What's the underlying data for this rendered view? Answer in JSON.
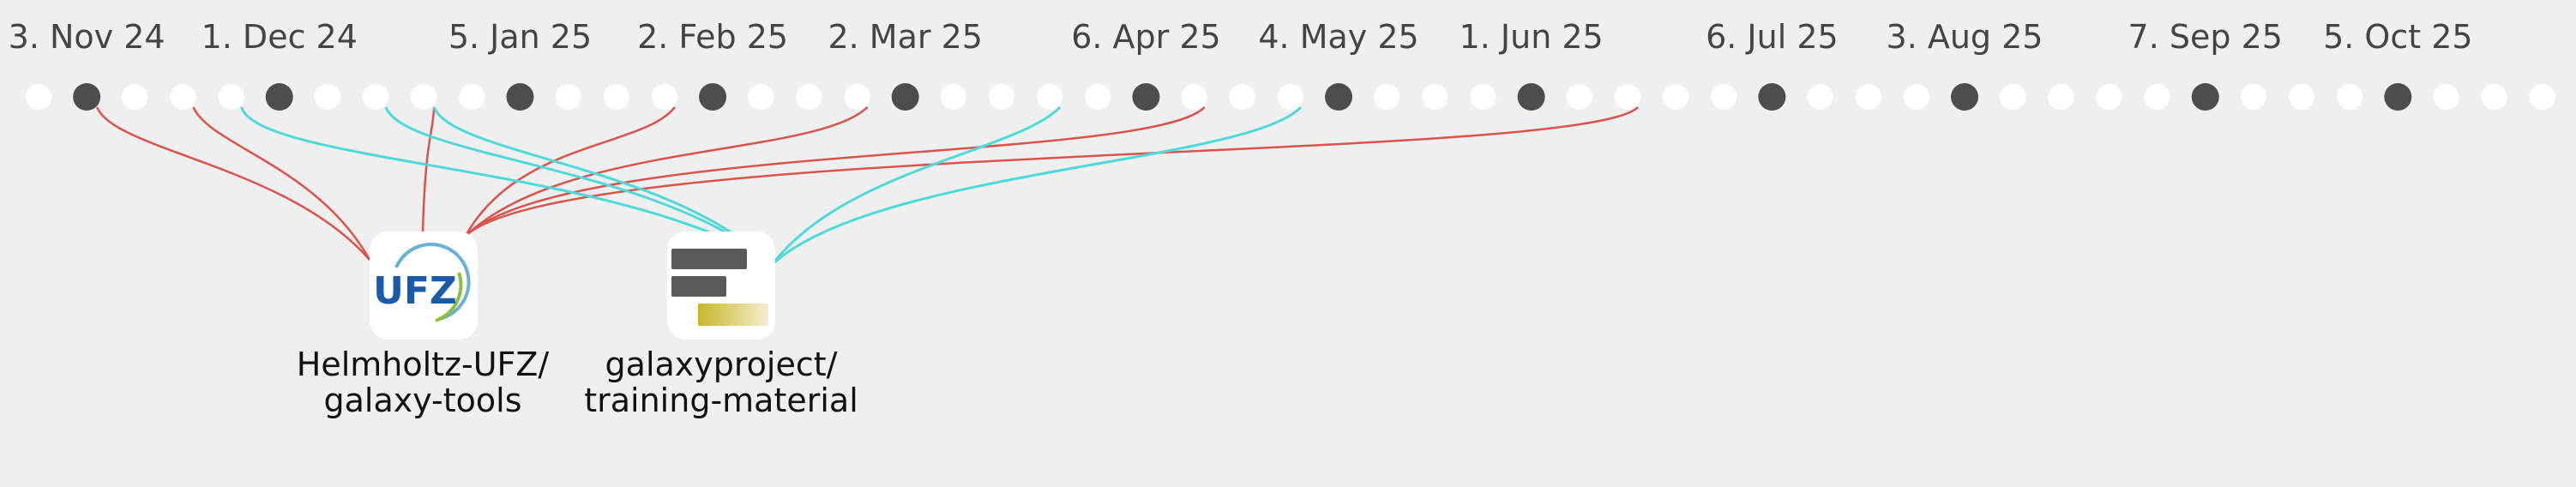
{
  "timeline": {
    "dates": [
      "3. Nov 24",
      "1. Dec 24",
      "5. Jan 25",
      "2. Feb 25",
      "2. Mar 25",
      "6. Apr 25",
      "4. May 25",
      "1. Jun 25",
      "6. Jul 25",
      "3. Aug 25",
      "7. Sep 25",
      "5. Oct 25"
    ],
    "date_week_index": [
      1,
      5,
      10,
      14,
      18,
      23,
      27,
      31,
      36,
      40,
      45,
      49
    ],
    "week_count": 53,
    "dot_fill": "#ffffff",
    "marker_fill": "#4d4d4d"
  },
  "repos": [
    {
      "name_line1": "Helmholtz-UFZ/",
      "name_line2": "galaxy-tools",
      "icon": "ufz-logo-icon",
      "logo_text": "UFZ",
      "link_color": "#d9534f",
      "linked_weeks": [
        1,
        3,
        8,
        13,
        17,
        24,
        33
      ]
    },
    {
      "name_line1": "galaxyproject/",
      "name_line2": "training-material",
      "icon": "training-material-logo-icon",
      "link_color": "#4fd9d9",
      "linked_weeks": [
        4,
        7,
        8,
        21,
        26
      ]
    }
  ],
  "colors": {
    "background": "#efefef",
    "red_link": "#d9534f",
    "cyan_link": "#4fd9d9",
    "ufz_blue": "#1a5aa6",
    "ufz_green": "#8cbf3f"
  }
}
